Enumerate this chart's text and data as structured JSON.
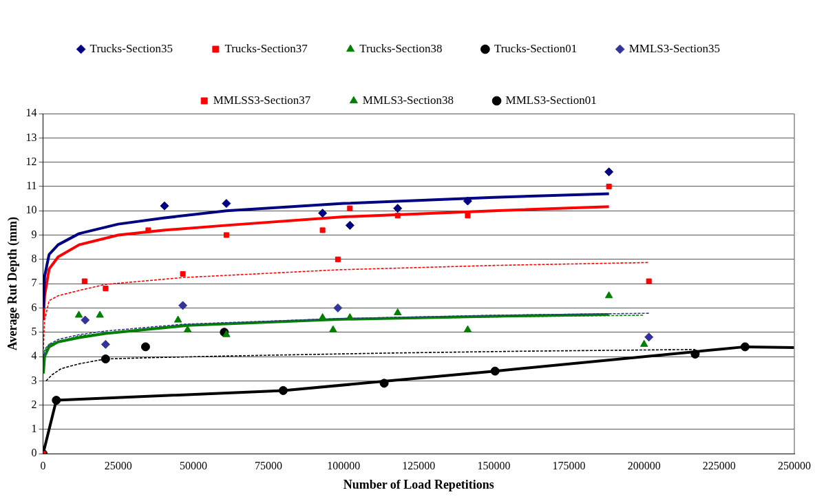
{
  "chart_data": {
    "type": "scatter",
    "xlabel": "Number of Load Repetitions",
    "ylabel": "Average Rut Depth (mm)",
    "xlim": [
      0,
      250000
    ],
    "xticks": [
      0,
      25000,
      50000,
      75000,
      100000,
      125000,
      150000,
      175000,
      200000,
      225000,
      250000
    ],
    "ylim": [
      0,
      14
    ],
    "yticks": [
      0,
      1,
      2,
      3,
      4,
      5,
      6,
      7,
      8,
      9,
      10,
      11,
      12,
      13,
      14
    ],
    "grid": "y",
    "legend": "top",
    "series": [
      {
        "name": "Trucks-Section35",
        "type": "scatter",
        "marker": "diamond",
        "color": "#000080",
        "x": [
          40400,
          61000,
          93000,
          102100,
          118000,
          141300,
          188300
        ],
        "values": [
          10.2,
          10.3,
          9.9,
          9.4,
          10.1,
          10.4,
          11.6
        ]
      },
      {
        "name": "Trucks-Section37",
        "type": "scatter",
        "marker": "square",
        "color": "#ff0000",
        "x": [
          0,
          35000,
          61000,
          93000,
          102100,
          118000,
          141300,
          188300
        ],
        "values": [
          0,
          9.2,
          9.0,
          9.2,
          10.1,
          9.8,
          9.8,
          11.0
        ]
      },
      {
        "name": "Trucks-Section38",
        "type": "scatter",
        "marker": "triangle",
        "color": "#008000",
        "x": [
          48100,
          61000,
          93000,
          102100,
          118000,
          141300,
          188300
        ],
        "values": [
          5.1,
          4.9,
          5.6,
          5.6,
          5.8,
          5.1,
          6.5
        ]
      },
      {
        "name": "Trucks-Section01",
        "type": "line",
        "marker": "circle",
        "line_style": "solid",
        "color": "#000000",
        "x": [
          0,
          4400,
          79900,
          150400,
          233600,
          250000
        ],
        "values": [
          0,
          2.2,
          2.6,
          3.4,
          4.4,
          4.37
        ]
      },
      {
        "name": "MMLS3-Section35",
        "type": "scatter",
        "marker": "diamond",
        "color": "#333399",
        "x": [
          14000,
          20800,
          46500,
          98100,
          201600
        ],
        "values": [
          5.5,
          4.5,
          6.1,
          6.0,
          4.8
        ]
      },
      {
        "name": "MMLSS3-Section37",
        "type": "scatter",
        "marker": "square",
        "color": "#ff0000",
        "x": [
          13800,
          20800,
          46500,
          98100,
          201600
        ],
        "values": [
          7.1,
          6.8,
          7.4,
          8.0,
          7.1
        ]
      },
      {
        "name": "MMLS3-Section38",
        "type": "scatter",
        "marker": "triangle",
        "color": "#008000",
        "x": [
          11900,
          18900,
          44900,
          96500,
          200000
        ],
        "values": [
          5.7,
          5.7,
          5.5,
          5.1,
          4.5
        ]
      },
      {
        "name": "MMLS3-Section01",
        "type": "scatter",
        "marker": "circle",
        "color": "#000000",
        "x": [
          20800,
          34100,
          60300,
          113500,
          217000
        ],
        "values": [
          3.9,
          4.4,
          5.0,
          2.9,
          4.1
        ]
      },
      {
        "type": "line",
        "marker": "none",
        "line_style": "solid",
        "color": "#000080",
        "x": [
          100,
          500,
          2000,
          5000,
          12000,
          25000,
          40000,
          61000,
          100000,
          150000,
          188300
        ],
        "values": [
          6.0,
          7.3,
          8.2,
          8.6,
          9.06,
          9.45,
          9.7,
          10.0,
          10.3,
          10.55,
          10.7
        ]
      },
      {
        "type": "line",
        "marker": "none",
        "line_style": "solid",
        "color": "#ff0000",
        "x": [
          100,
          500,
          2000,
          5000,
          12000,
          25000,
          40000,
          61000,
          100000,
          150000,
          188300
        ],
        "values": [
          5.5,
          6.5,
          7.6,
          8.1,
          8.6,
          9.0,
          9.2,
          9.4,
          9.75,
          10.0,
          10.17
        ]
      },
      {
        "type": "line",
        "marker": "none",
        "line_style": "dashed",
        "color": "#ff0000",
        "x": [
          100,
          500,
          2000,
          5000,
          12000,
          20800,
          46500,
          98100,
          150000,
          201600
        ],
        "values": [
          4.3,
          5.5,
          6.3,
          6.5,
          6.72,
          6.97,
          7.25,
          7.57,
          7.75,
          7.87
        ]
      },
      {
        "type": "line",
        "marker": "none",
        "line_style": "dashed",
        "color": "#333399",
        "x": [
          100,
          500,
          2000,
          5000,
          12000,
          20800,
          46500,
          98100,
          150000,
          201600
        ],
        "values": [
          3.9,
          4.2,
          4.5,
          4.7,
          4.9,
          5.05,
          5.33,
          5.56,
          5.7,
          5.78
        ]
      },
      {
        "type": "line",
        "marker": "none",
        "line_style": "dashed",
        "color": "#008000",
        "x": [
          100,
          500,
          2000,
          12000,
          46500,
          98100,
          150000,
          200000
        ],
        "values": [
          4.0,
          4.3,
          4.5,
          4.85,
          5.3,
          5.52,
          5.63,
          5.7
        ]
      },
      {
        "type": "line",
        "marker": "none",
        "line_style": "solid",
        "color": "#008000",
        "x": [
          100,
          500,
          2000,
          5000,
          12000,
          20800,
          48100,
          98100,
          150000,
          188300
        ],
        "values": [
          3.3,
          4.0,
          4.4,
          4.6,
          4.78,
          4.95,
          5.28,
          5.53,
          5.66,
          5.73
        ]
      },
      {
        "type": "line",
        "marker": "none",
        "line_style": "dashed",
        "color": "#000000",
        "x": [
          1000,
          3000,
          6000,
          12000,
          20800,
          35000,
          60300,
          113500,
          160000,
          217000
        ],
        "values": [
          3.0,
          3.25,
          3.5,
          3.7,
          3.9,
          3.95,
          4.02,
          4.14,
          4.22,
          4.29
        ]
      }
    ]
  }
}
